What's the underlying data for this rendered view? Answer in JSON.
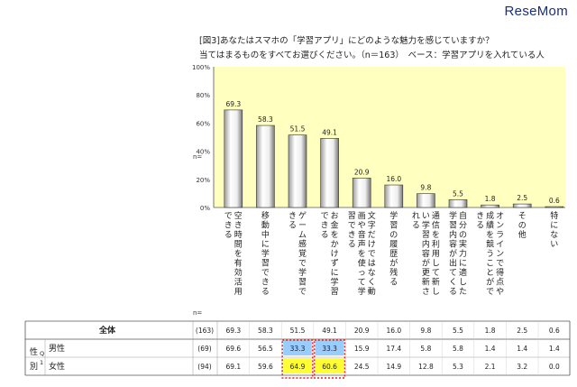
{
  "brand": "ReseMom",
  "header": {
    "title_line1": "[図3]あなたはスマホの「学習アプリ」にどのような魅力を感じていますか？",
    "title_line2": "当てはまるものをすべてお選びください。（n＝163）　ベース：学習アプリを入れている人"
  },
  "chart_data": {
    "type": "bar",
    "title": "[図3]あなたはスマホの「学習アプリ」にどのような魅力を感じていますか？",
    "subtitle": "当てはまるものをすべてお選びください。（n＝163）　ベース：学習アプリを入れている人",
    "ylim": [
      0,
      100
    ],
    "y_ticks": [
      "100%",
      "80%",
      "60%",
      "40%",
      "20%",
      "0%"
    ],
    "y_tick_values": [
      100,
      80,
      60,
      40,
      20,
      0
    ],
    "background_color": "#ffffc0",
    "bar_color": "#eeeeee",
    "categories": [
      "空き時間を有効活用できる",
      "移動中に学習できる",
      "ゲーム感覚で学習できる",
      "お金をかけずに学習できる",
      "文字だけではなく動画や音声を使って学習できる",
      "学習の履歴が残る",
      "通信を利用して新しい学習内容が更新される",
      "自分の実力に適した学習内容が出てくる",
      "オンラインで得点や成績を競うことができる",
      "その他",
      "特にない"
    ],
    "values": [
      69.3,
      58.3,
      51.5,
      49.1,
      20.9,
      16.0,
      9.8,
      5.5,
      1.8,
      2.5,
      0.6
    ],
    "value_labels": [
      "69.3",
      "58.3",
      "51.5",
      "49.1",
      "20.9",
      "16.0",
      "9.8",
      "5.5",
      "1.8",
      "2.5",
      "0.6"
    ]
  },
  "table": {
    "n_label_top": "n=",
    "n_label_bottom": "n=",
    "group_label": "性別",
    "group_sub": "Q1",
    "rows": [
      {
        "label": "全体",
        "n": "(163)",
        "values": [
          "69.3",
          "58.3",
          "51.5",
          "49.1",
          "20.9",
          "16.0",
          "9.8",
          "5.5",
          "1.8",
          "2.5",
          "0.6"
        ]
      },
      {
        "label": "男性",
        "n": "(69)",
        "values": [
          "69.6",
          "56.5",
          "33.3",
          "33.3",
          "15.9",
          "17.4",
          "5.8",
          "5.8",
          "1.4",
          "1.4",
          "1.4"
        ]
      },
      {
        "label": "女性",
        "n": "(94)",
        "values": [
          "69.1",
          "59.6",
          "64.9",
          "60.6",
          "24.5",
          "14.9",
          "12.8",
          "5.3",
          "2.1",
          "3.2",
          "0.0"
        ]
      }
    ],
    "highlight_blue": "#99ccff",
    "highlight_yellow": "#ffff33",
    "highlight_border": "#e0201a"
  }
}
